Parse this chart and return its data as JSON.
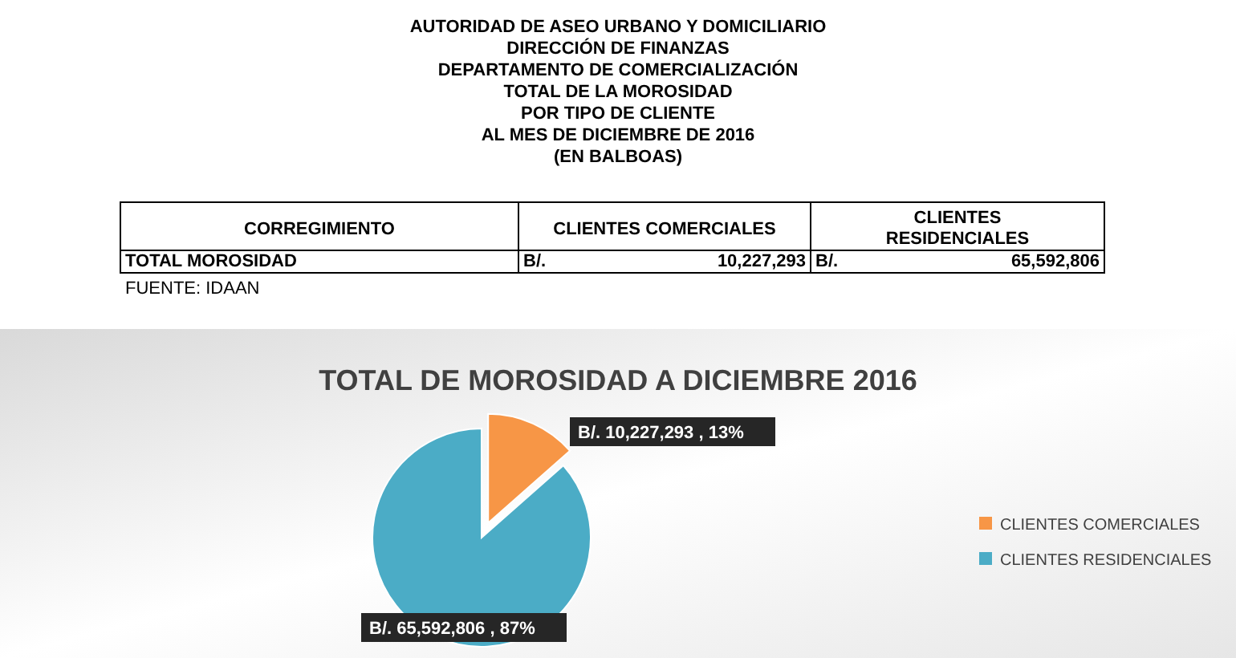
{
  "chart_data": {
    "type": "pie",
    "title": "TOTAL DE MOROSIDAD A DICIEMBRE 2016",
    "categories": [
      "CLIENTES COMERCIALES",
      "CLIENTES RESIDENCIALES"
    ],
    "values": [
      10227293,
      65592806
    ],
    "colors": [
      "#f79646",
      "#4bacc6"
    ],
    "value_labels": [
      "B/. 10,227,293 , 13%",
      "B/. 65,592,806 , 87%"
    ],
    "legend": "right",
    "annotations": [
      "AUTORIDAD DE ASEO URBANO Y DOMICILIARIO",
      "DIRECCIÓN DE FINANZAS",
      "DEPARTAMENTO DE COMERCIALIZACIÓN",
      "TOTAL DE LA MOROSIDAD",
      "POR TIPO DE CLIENTE",
      "AL MES DE DICIEMBRE DE 2016",
      "(EN BALBOAS)",
      "CORREGIMIENTO",
      "CLIENTES COMERCIALES",
      "CLIENTES RESIDENCIALES",
      "TOTAL MOROSIDAD",
      "B/.",
      "10,227,293",
      "B/.",
      "65,592,806",
      "FUENTE: IDAAN"
    ]
  }
}
